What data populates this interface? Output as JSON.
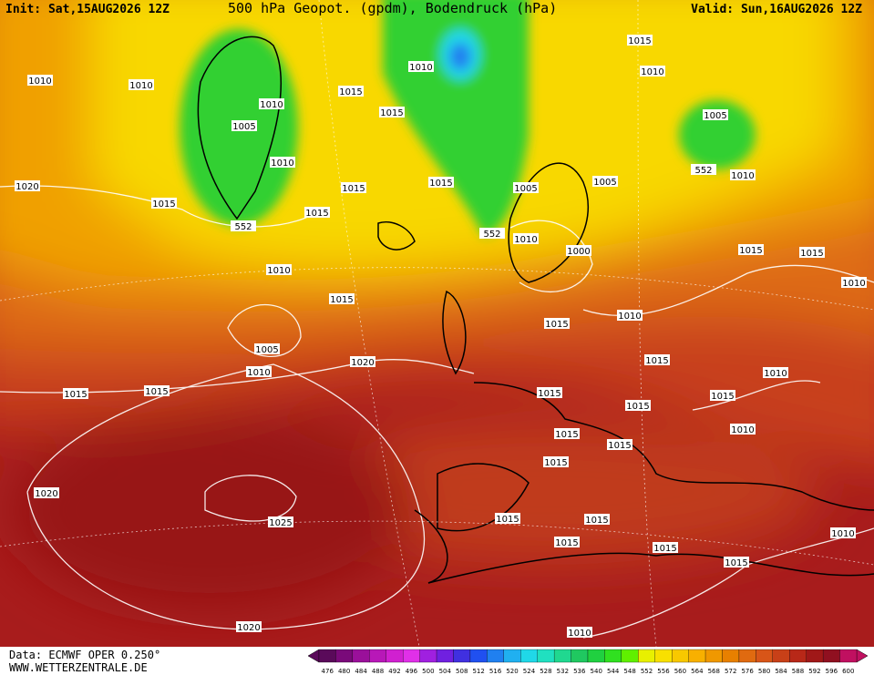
{
  "header": {
    "init": "Init: Sat,15AUG2026 12Z",
    "title": "500 hPa Geopot. (gpdm), Bodendruck (hPa)",
    "valid": "Valid: Sun,16AUG2026 12Z"
  },
  "footer": {
    "data": "Data: ECMWF OPER 0.250°",
    "url": "WWW.WETTERZENTRALE.DE"
  },
  "colorbar": {
    "values": [
      476,
      480,
      484,
      488,
      492,
      496,
      500,
      504,
      508,
      512,
      516,
      520,
      524,
      528,
      532,
      536,
      540,
      544,
      548,
      552,
      556,
      560,
      564,
      568,
      572,
      576,
      580,
      584,
      588,
      592,
      596,
      600
    ],
    "colors": [
      "#5a0a5a",
      "#7a0a7a",
      "#9a109a",
      "#b818b8",
      "#d020d0",
      "#e030e8",
      "#a020e0",
      "#7020e0",
      "#4030e0",
      "#2050f0",
      "#2080f0",
      "#20b0f0",
      "#20d8e8",
      "#20e0c0",
      "#20d890",
      "#20c860",
      "#20d040",
      "#30e020",
      "#60f000",
      "#e8f000",
      "#f8e000",
      "#f8c800",
      "#f8b000",
      "#f09800",
      "#e88000",
      "#e06a10",
      "#d85518",
      "#c84018",
      "#b82818",
      "#a01818",
      "#901020",
      "#c01060"
    ]
  },
  "isobar_labels": [
    "1010",
    "1010",
    "1010",
    "1005",
    "1010",
    "1015",
    "1020",
    "552",
    "1010",
    "1015",
    "1015",
    "1015",
    "1015",
    "1015",
    "552",
    "1005",
    "1010",
    "1000",
    "1005",
    "1015",
    "1010",
    "1005",
    "552",
    "1010",
    "1015",
    "1015",
    "1010",
    "1010",
    "1015",
    "1015",
    "1010",
    "1005",
    "1010",
    "1020",
    "1015",
    "1015",
    "1015",
    "1015",
    "1015",
    "1015",
    "1010",
    "1010",
    "1015",
    "1015",
    "1015",
    "1020",
    "1025",
    "1015",
    "1015",
    "1015",
    "1015",
    "1015",
    "1010",
    "1020",
    "1010"
  ]
}
